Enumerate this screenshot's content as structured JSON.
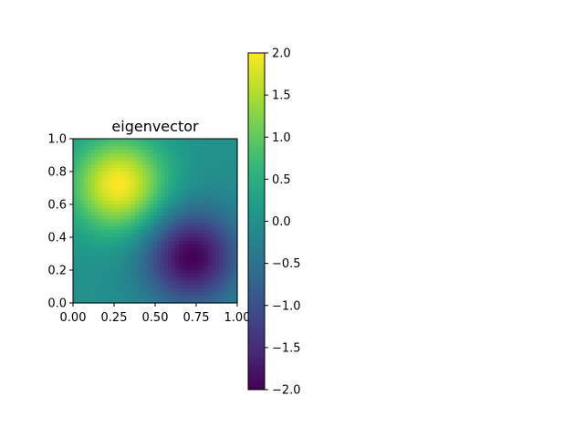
{
  "chart_data": {
    "type": "heatmap",
    "title": "eigenvector",
    "xlabel": "",
    "ylabel": "",
    "xlim": [
      0,
      1
    ],
    "ylim": [
      0,
      1
    ],
    "x_ticks": [
      "0.00",
      "0.25",
      "0.50",
      "0.75",
      "1.00"
    ],
    "y_ticks": [
      "0.0",
      "0.2",
      "0.4",
      "0.6",
      "0.8",
      "1.0"
    ],
    "colormap": "viridis",
    "colorbar": {
      "range": [
        -2,
        2
      ],
      "ticks": [
        "2.0",
        "1.5",
        "1.0",
        "0.5",
        "0.0",
        "−0.5",
        "−1.0",
        "−1.5",
        "−2.0"
      ]
    },
    "extrema": [
      {
        "kind": "max",
        "x": 0.28,
        "y": 0.72,
        "value": 2.0
      },
      {
        "kind": "min",
        "x": 0.72,
        "y": 0.28,
        "value": -2.0
      }
    ],
    "grid": false,
    "colors": {
      "viridis": [
        "#440154",
        "#482878",
        "#3e4989",
        "#31688e",
        "#26828e",
        "#1f9e89",
        "#35b779",
        "#6ece58",
        "#b5de2b",
        "#fde725"
      ]
    }
  }
}
